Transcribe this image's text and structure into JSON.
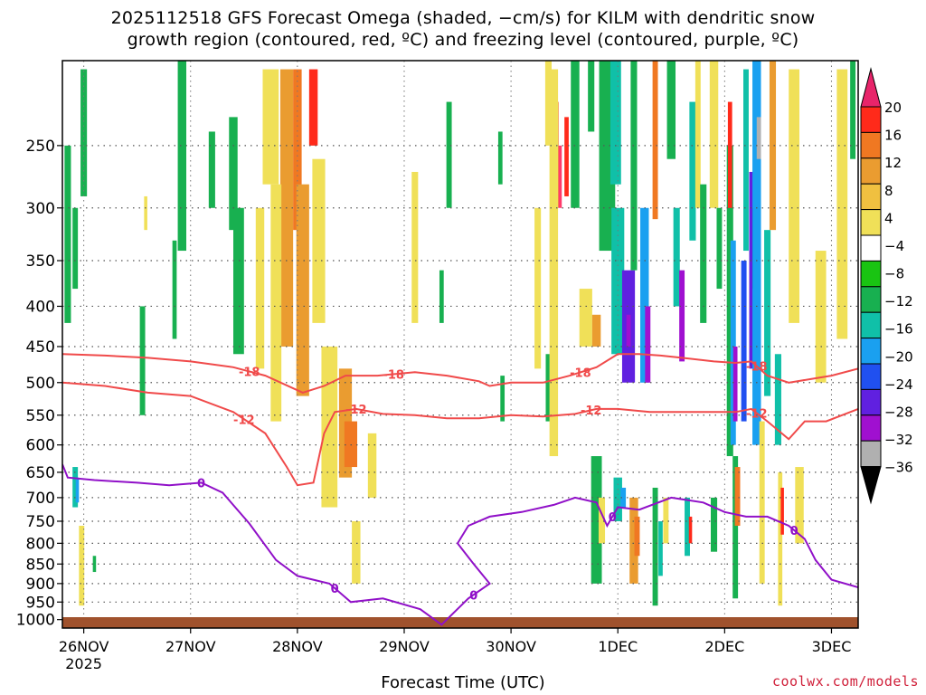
{
  "chart_data": {
    "type": "heatmap",
    "title_line1": "2025112518 GFS Forecast Omega (shaded, −cm/s) for KILM with dendritic snow",
    "title_line2": "growth region (contoured, red, ºC) and freezing level (contoured, purple, ºC)",
    "xlabel": "Forecast Time (UTC)",
    "credit": "coolwx.com/models",
    "x_ticks": [
      {
        "label": "26NOV",
        "sub": "2025",
        "day": 0.2
      },
      {
        "label": "27NOV",
        "sub": "",
        "day": 1.2
      },
      {
        "label": "28NOV",
        "sub": "",
        "day": 2.2
      },
      {
        "label": "29NOV",
        "sub": "",
        "day": 3.2
      },
      {
        "label": "30NOV",
        "sub": "",
        "day": 4.2
      },
      {
        "label": "1DEC",
        "sub": "",
        "day": 5.2
      },
      {
        "label": "2DEC",
        "sub": "",
        "day": 6.2
      },
      {
        "label": "3DEC",
        "sub": "",
        "day": 7.2
      }
    ],
    "xlim": [
      0,
      7.45
    ],
    "y_ticks": [
      250,
      300,
      350,
      400,
      450,
      500,
      550,
      600,
      650,
      700,
      750,
      800,
      850,
      900,
      950,
      1000
    ],
    "ylim_hpa": [
      195,
      1025
    ],
    "colorbar": {
      "labels": [
        "20",
        "16",
        "12",
        "8",
        "4",
        "−4",
        "−8",
        "−12",
        "−16",
        "−20",
        "−24",
        "−28",
        "−32",
        "−36"
      ],
      "colors": [
        "#ff3b6b",
        "#ff2a1a",
        "#f07822",
        "#ea9c30",
        "#f0c040",
        "#f0e058",
        "#ffffff",
        "#19c412",
        "#18b050",
        "#10c0a8",
        "#1aa0f0",
        "#2050f0",
        "#6020e0",
        "#a010d0",
        "#b0b0b0",
        "#000000"
      ]
    },
    "omega_cells": [
      {
        "d": 0.05,
        "w": 0.06,
        "p0": 250,
        "p1": 420,
        "v": -8
      },
      {
        "d": 0.12,
        "w": 0.05,
        "p0": 300,
        "p1": 380,
        "v": -8
      },
      {
        "d": 0.2,
        "w": 0.06,
        "p0": 200,
        "p1": 290,
        "v": -8
      },
      {
        "d": 0.12,
        "w": 0.05,
        "p0": 640,
        "p1": 720,
        "v": -12
      },
      {
        "d": 0.14,
        "w": 0.03,
        "p0": 660,
        "p1": 710,
        "v": -16
      },
      {
        "d": 0.18,
        "w": 0.05,
        "p0": 760,
        "p1": 960,
        "v": 4
      },
      {
        "d": 0.3,
        "w": 0.03,
        "p0": 830,
        "p1": 870,
        "v": -8
      },
      {
        "d": 0.75,
        "w": 0.05,
        "p0": 400,
        "p1": 550,
        "v": -8
      },
      {
        "d": 0.78,
        "w": 0.03,
        "p0": 290,
        "p1": 320,
        "v": 4
      },
      {
        "d": 1.05,
        "w": 0.04,
        "p0": 330,
        "p1": 440,
        "v": -8
      },
      {
        "d": 1.12,
        "w": 0.08,
        "p0": 180,
        "p1": 340,
        "v": -8
      },
      {
        "d": 1.4,
        "w": 0.06,
        "p0": 240,
        "p1": 300,
        "v": -8
      },
      {
        "d": 1.6,
        "w": 0.08,
        "p0": 230,
        "p1": 320,
        "v": -8
      },
      {
        "d": 1.65,
        "w": 0.1,
        "p0": 300,
        "p1": 460,
        "v": -8
      },
      {
        "d": 1.95,
        "w": 0.15,
        "p0": 200,
        "p1": 280,
        "v": 4
      },
      {
        "d": 2.1,
        "w": 0.12,
        "p0": 200,
        "p1": 450,
        "v": 8
      },
      {
        "d": 2.2,
        "w": 0.08,
        "p0": 200,
        "p1": 320,
        "v": 12
      },
      {
        "d": 2.35,
        "w": 0.08,
        "p0": 200,
        "p1": 250,
        "v": 16
      },
      {
        "d": 2.0,
        "w": 0.1,
        "p0": 280,
        "p1": 560,
        "v": 4
      },
      {
        "d": 2.25,
        "w": 0.12,
        "p0": 280,
        "p1": 520,
        "v": 8
      },
      {
        "d": 1.85,
        "w": 0.08,
        "p0": 300,
        "p1": 480,
        "v": 4
      },
      {
        "d": 2.4,
        "w": 0.12,
        "p0": 260,
        "p1": 420,
        "v": 4
      },
      {
        "d": 2.5,
        "w": 0.15,
        "p0": 450,
        "p1": 720,
        "v": 4
      },
      {
        "d": 2.65,
        "w": 0.12,
        "p0": 480,
        "p1": 660,
        "v": 8
      },
      {
        "d": 2.7,
        "w": 0.12,
        "p0": 560,
        "p1": 640,
        "v": 12
      },
      {
        "d": 2.9,
        "w": 0.08,
        "p0": 580,
        "p1": 700,
        "v": 4
      },
      {
        "d": 2.75,
        "w": 0.08,
        "p0": 750,
        "p1": 900,
        "v": 4
      },
      {
        "d": 3.3,
        "w": 0.06,
        "p0": 270,
        "p1": 420,
        "v": 4
      },
      {
        "d": 3.55,
        "w": 0.04,
        "p0": 360,
        "p1": 420,
        "v": -8
      },
      {
        "d": 3.62,
        "w": 0.05,
        "p0": 220,
        "p1": 300,
        "v": -8
      },
      {
        "d": 4.1,
        "w": 0.04,
        "p0": 240,
        "p1": 280,
        "v": -8
      },
      {
        "d": 4.12,
        "w": 0.04,
        "p0": 490,
        "p1": 560,
        "v": -8
      },
      {
        "d": 4.45,
        "w": 0.06,
        "p0": 300,
        "p1": 480,
        "v": 4
      },
      {
        "d": 4.55,
        "w": 0.06,
        "p0": 180,
        "p1": 250,
        "v": 4
      },
      {
        "d": 4.62,
        "w": 0.05,
        "p0": 220,
        "p1": 300,
        "v": 12
      },
      {
        "d": 4.66,
        "w": 0.03,
        "p0": 250,
        "p1": 300,
        "v": 20
      },
      {
        "d": 4.72,
        "w": 0.04,
        "p0": 230,
        "p1": 290,
        "v": 16
      },
      {
        "d": 4.55,
        "w": 0.05,
        "p0": 460,
        "p1": 560,
        "v": -8
      },
      {
        "d": 4.6,
        "w": 0.08,
        "p0": 200,
        "p1": 620,
        "v": 4
      },
      {
        "d": 4.8,
        "w": 0.08,
        "p0": 180,
        "p1": 300,
        "v": -8
      },
      {
        "d": 4.95,
        "w": 0.06,
        "p0": 180,
        "p1": 240,
        "v": -8
      },
      {
        "d": 4.9,
        "w": 0.12,
        "p0": 380,
        "p1": 450,
        "v": 4
      },
      {
        "d": 5.0,
        "w": 0.08,
        "p0": 410,
        "p1": 450,
        "v": 8
      },
      {
        "d": 5.0,
        "w": 0.1,
        "p0": 620,
        "p1": 900,
        "v": -8
      },
      {
        "d": 5.05,
        "w": 0.06,
        "p0": 700,
        "p1": 800,
        "v": 4
      },
      {
        "d": 5.1,
        "w": 0.15,
        "p0": 180,
        "p1": 340,
        "v": -8
      },
      {
        "d": 5.18,
        "w": 0.1,
        "p0": 180,
        "p1": 280,
        "v": -12
      },
      {
        "d": 5.2,
        "w": 0.12,
        "p0": 300,
        "p1": 460,
        "v": -12
      },
      {
        "d": 5.3,
        "w": 0.12,
        "p0": 360,
        "p1": 500,
        "v": -24
      },
      {
        "d": 5.3,
        "w": 0.04,
        "p0": 410,
        "p1": 450,
        "v": -28
      },
      {
        "d": 5.35,
        "w": 0.06,
        "p0": 180,
        "p1": 360,
        "v": -8
      },
      {
        "d": 5.2,
        "w": 0.08,
        "p0": 660,
        "p1": 750,
        "v": -12
      },
      {
        "d": 5.25,
        "w": 0.05,
        "p0": 680,
        "p1": 720,
        "v": -16
      },
      {
        "d": 5.35,
        "w": 0.08,
        "p0": 700,
        "p1": 900,
        "v": 8
      },
      {
        "d": 5.38,
        "w": 0.05,
        "p0": 740,
        "p1": 830,
        "v": 12
      },
      {
        "d": 5.45,
        "w": 0.08,
        "p0": 300,
        "p1": 500,
        "v": -16
      },
      {
        "d": 5.48,
        "w": 0.05,
        "p0": 400,
        "p1": 500,
        "v": -28
      },
      {
        "d": 5.55,
        "w": 0.05,
        "p0": 180,
        "p1": 310,
        "v": 12
      },
      {
        "d": 5.55,
        "w": 0.05,
        "p0": 680,
        "p1": 960,
        "v": -8
      },
      {
        "d": 5.6,
        "w": 0.04,
        "p0": 750,
        "p1": 880,
        "v": -12
      },
      {
        "d": 5.65,
        "w": 0.05,
        "p0": 700,
        "p1": 800,
        "v": 4
      },
      {
        "d": 5.7,
        "w": 0.08,
        "p0": 180,
        "p1": 260,
        "v": -8
      },
      {
        "d": 5.75,
        "w": 0.06,
        "p0": 300,
        "p1": 400,
        "v": -12
      },
      {
        "d": 5.8,
        "w": 0.05,
        "p0": 360,
        "p1": 470,
        "v": -28
      },
      {
        "d": 5.85,
        "w": 0.05,
        "p0": 700,
        "p1": 830,
        "v": -12
      },
      {
        "d": 5.88,
        "w": 0.03,
        "p0": 740,
        "p1": 800,
        "v": 16
      },
      {
        "d": 5.9,
        "w": 0.06,
        "p0": 220,
        "p1": 330,
        "v": -12
      },
      {
        "d": 5.95,
        "w": 0.05,
        "p0": 180,
        "p1": 300,
        "v": 4
      },
      {
        "d": 6.0,
        "w": 0.06,
        "p0": 280,
        "p1": 420,
        "v": -8
      },
      {
        "d": 6.1,
        "w": 0.08,
        "p0": 180,
        "p1": 300,
        "v": 4
      },
      {
        "d": 6.1,
        "w": 0.06,
        "p0": 700,
        "p1": 820,
        "v": -8
      },
      {
        "d": 6.15,
        "w": 0.05,
        "p0": 300,
        "p1": 380,
        "v": -8
      },
      {
        "d": 6.25,
        "w": 0.06,
        "p0": 250,
        "p1": 620,
        "v": -8
      },
      {
        "d": 6.25,
        "w": 0.04,
        "p0": 220,
        "p1": 300,
        "v": 16
      },
      {
        "d": 6.28,
        "w": 0.05,
        "p0": 330,
        "p1": 600,
        "v": -16
      },
      {
        "d": 6.3,
        "w": 0.04,
        "p0": 450,
        "p1": 560,
        "v": -28
      },
      {
        "d": 6.3,
        "w": 0.05,
        "p0": 620,
        "p1": 940,
        "v": -8
      },
      {
        "d": 6.32,
        "w": 0.05,
        "p0": 640,
        "p1": 760,
        "v": 12
      },
      {
        "d": 6.38,
        "w": 0.05,
        "p0": 350,
        "p1": 560,
        "v": -20
      },
      {
        "d": 6.4,
        "w": 0.05,
        "p0": 200,
        "p1": 340,
        "v": -12
      },
      {
        "d": 6.45,
        "w": 0.04,
        "p0": 270,
        "p1": 480,
        "v": -24
      },
      {
        "d": 6.48,
        "w": 0.04,
        "p0": 300,
        "p1": 380,
        "v": -36
      },
      {
        "d": 6.5,
        "w": 0.08,
        "p0": 180,
        "p1": 600,
        "v": -16
      },
      {
        "d": 6.52,
        "w": 0.04,
        "p0": 230,
        "p1": 260,
        "v": -32
      },
      {
        "d": 6.55,
        "w": 0.05,
        "p0": 560,
        "p1": 900,
        "v": 4
      },
      {
        "d": 6.6,
        "w": 0.06,
        "p0": 320,
        "p1": 520,
        "v": -12
      },
      {
        "d": 6.65,
        "w": 0.06,
        "p0": 180,
        "p1": 320,
        "v": 8
      },
      {
        "d": 6.7,
        "w": 0.06,
        "p0": 460,
        "p1": 600,
        "v": -12
      },
      {
        "d": 6.72,
        "w": 0.04,
        "p0": 650,
        "p1": 960,
        "v": 4
      },
      {
        "d": 6.74,
        "w": 0.03,
        "p0": 680,
        "p1": 780,
        "v": 16
      },
      {
        "d": 6.85,
        "w": 0.1,
        "p0": 200,
        "p1": 420,
        "v": 4
      },
      {
        "d": 6.9,
        "w": 0.08,
        "p0": 640,
        "p1": 800,
        "v": 4
      },
      {
        "d": 7.1,
        "w": 0.1,
        "p0": 340,
        "p1": 500,
        "v": 4
      },
      {
        "d": 7.3,
        "w": 0.1,
        "p0": 200,
        "p1": 440,
        "v": 4
      },
      {
        "d": 7.4,
        "w": 0.05,
        "p0": 180,
        "p1": 260,
        "v": -8
      }
    ],
    "contours": [
      {
        "label": "-18",
        "color": "#f04a4a",
        "width": 2,
        "label_days": [
          1.75,
          3.1,
          4.85,
          6.5
        ],
        "points": [
          [
            0,
            460
          ],
          [
            0.4,
            462
          ],
          [
            0.8,
            465
          ],
          [
            1.2,
            470
          ],
          [
            1.6,
            478
          ],
          [
            1.9,
            490
          ],
          [
            2.25,
            515
          ],
          [
            2.45,
            505
          ],
          [
            2.65,
            490
          ],
          [
            2.95,
            490
          ],
          [
            3.3,
            485
          ],
          [
            3.6,
            490
          ],
          [
            3.9,
            498
          ],
          [
            4.0,
            505
          ],
          [
            4.2,
            500
          ],
          [
            4.5,
            500
          ],
          [
            4.75,
            490
          ],
          [
            5.0,
            478
          ],
          [
            5.2,
            460
          ],
          [
            5.4,
            460
          ],
          [
            5.6,
            462
          ],
          [
            5.8,
            465
          ],
          [
            6.1,
            470
          ],
          [
            6.3,
            472
          ],
          [
            6.45,
            470
          ],
          [
            6.6,
            490
          ],
          [
            6.8,
            500
          ],
          [
            7.0,
            495
          ],
          [
            7.2,
            490
          ],
          [
            7.45,
            480
          ]
        ]
      },
      {
        "label": "-12",
        "color": "#f04a4a",
        "width": 2,
        "label_days": [
          1.7,
          2.75,
          4.95,
          6.5
        ],
        "points": [
          [
            0,
            500
          ],
          [
            0.4,
            505
          ],
          [
            0.8,
            515
          ],
          [
            1.2,
            520
          ],
          [
            1.6,
            545
          ],
          [
            1.9,
            580
          ],
          [
            2.1,
            640
          ],
          [
            2.2,
            675
          ],
          [
            2.35,
            670
          ],
          [
            2.45,
            580
          ],
          [
            2.55,
            545
          ],
          [
            2.75,
            540
          ],
          [
            3.0,
            548
          ],
          [
            3.3,
            550
          ],
          [
            3.6,
            555
          ],
          [
            3.9,
            555
          ],
          [
            4.2,
            550
          ],
          [
            4.5,
            552
          ],
          [
            4.8,
            548
          ],
          [
            5.0,
            540
          ],
          [
            5.2,
            540
          ],
          [
            5.5,
            545
          ],
          [
            5.8,
            545
          ],
          [
            6.1,
            545
          ],
          [
            6.3,
            545
          ],
          [
            6.45,
            540
          ],
          [
            6.6,
            560
          ],
          [
            6.8,
            590
          ],
          [
            6.95,
            560
          ],
          [
            7.15,
            560
          ],
          [
            7.45,
            540
          ]
        ]
      },
      {
        "label": "0",
        "color": "#9010c8",
        "width": 2,
        "label_days": [
          1.3,
          2.55,
          3.85,
          5.15,
          6.85
        ],
        "points": [
          [
            0,
            635
          ],
          [
            0.05,
            660
          ],
          [
            0.3,
            665
          ],
          [
            0.7,
            670
          ],
          [
            1.0,
            675
          ],
          [
            1.3,
            670
          ],
          [
            1.5,
            690
          ],
          [
            1.75,
            755
          ],
          [
            2.0,
            840
          ],
          [
            2.2,
            880
          ],
          [
            2.5,
            900
          ],
          [
            2.7,
            950
          ],
          [
            3.0,
            940
          ],
          [
            3.35,
            970
          ],
          [
            3.55,
            1015
          ],
          [
            3.8,
            940
          ],
          [
            4.0,
            900
          ],
          [
            3.85,
            850
          ],
          [
            3.7,
            800
          ],
          [
            3.8,
            760
          ],
          [
            4.0,
            740
          ],
          [
            4.3,
            730
          ],
          [
            4.6,
            715
          ],
          [
            4.8,
            700
          ],
          [
            5.0,
            710
          ],
          [
            5.1,
            760
          ],
          [
            5.2,
            720
          ],
          [
            5.4,
            725
          ],
          [
            5.7,
            700
          ],
          [
            6.0,
            710
          ],
          [
            6.2,
            730
          ],
          [
            6.4,
            740
          ],
          [
            6.6,
            740
          ],
          [
            6.8,
            760
          ],
          [
            6.95,
            790
          ],
          [
            7.05,
            840
          ],
          [
            7.2,
            890
          ],
          [
            7.45,
            910
          ]
        ]
      }
    ]
  }
}
